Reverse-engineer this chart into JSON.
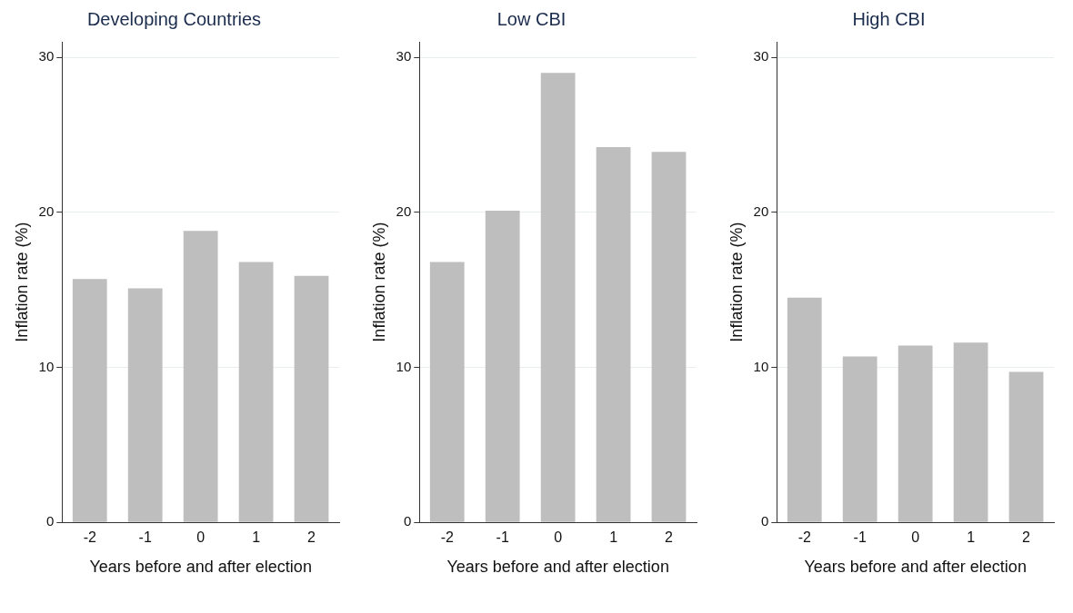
{
  "chart_data": [
    {
      "type": "bar",
      "title": "Developing Countries",
      "xlabel": "Years before and after election",
      "ylabel": "Inflation rate (%)",
      "categories": [
        "-2",
        "-1",
        "0",
        "1",
        "2"
      ],
      "values": [
        15.7,
        15.1,
        18.8,
        16.8,
        15.9
      ],
      "color": "#bebebe",
      "ylim": [
        0,
        31
      ],
      "yticks": [
        0,
        10,
        20,
        30
      ],
      "grid": "y",
      "legend": false
    },
    {
      "type": "bar",
      "title": "Low CBI",
      "xlabel": "Years before and after election",
      "ylabel": "Inflation rate (%)",
      "categories": [
        "-2",
        "-1",
        "0",
        "1",
        "2"
      ],
      "values": [
        16.8,
        20.1,
        29.0,
        24.2,
        23.9
      ],
      "color": "#bebebe",
      "ylim": [
        0,
        31
      ],
      "yticks": [
        0,
        10,
        20,
        30
      ],
      "grid": "y",
      "legend": false
    },
    {
      "type": "bar",
      "title": "High CBI",
      "xlabel": "Years before and after election",
      "ylabel": "Inflation rate (%)",
      "categories": [
        "-2",
        "-1",
        "0",
        "1",
        "2"
      ],
      "values": [
        14.5,
        10.7,
        11.4,
        11.6,
        9.7
      ],
      "color": "#bebebe",
      "ylim": [
        0,
        31
      ],
      "yticks": [
        0,
        10,
        20,
        30
      ],
      "grid": "y",
      "legend": false
    }
  ]
}
